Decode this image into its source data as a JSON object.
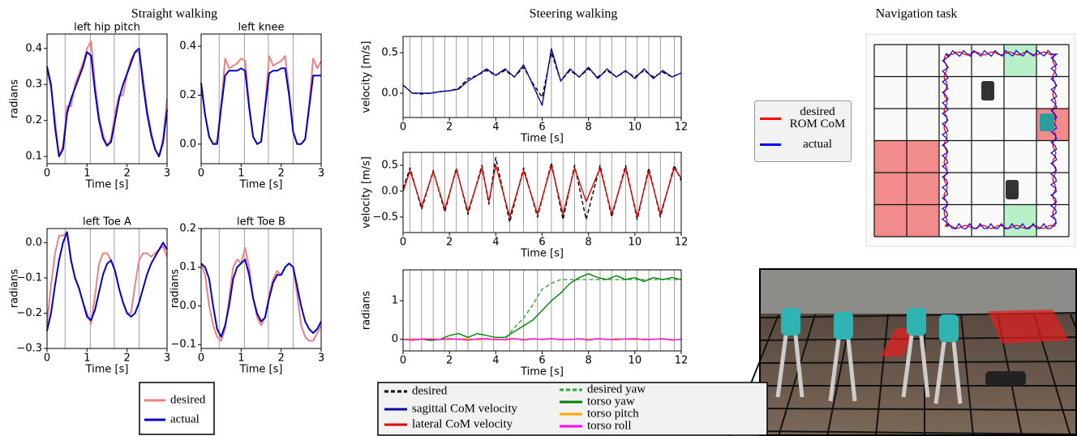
{
  "sections": [
    "Straight walking",
    "Steering walking"
  ],
  "navigation": {
    "title": "Navigation task",
    "legend": [
      {
        "name": "desired ROM CoM",
        "color": "#ff0000"
      },
      {
        "name": "actual",
        "color": "#0000ff"
      }
    ]
  },
  "chart_data": [
    {
      "type": "line",
      "title": "left hip pitch",
      "xlabel": "Time [s]",
      "ylabel": "radians",
      "x": [
        0,
        0.1,
        0.2,
        0.3,
        0.4,
        0.5,
        0.6,
        0.7,
        0.8,
        0.9,
        1,
        1.1,
        1.2,
        1.3,
        1.4,
        1.5,
        1.6,
        1.7,
        1.8,
        1.9,
        2,
        2.1,
        2.2,
        2.3,
        2.4,
        2.5,
        2.6,
        2.7,
        2.8,
        2.9,
        3
      ],
      "xlim": [
        0,
        3
      ],
      "xticks": [
        0,
        1,
        2,
        3
      ],
      "ylim": [
        0.08,
        0.44
      ],
      "yticks": [
        0.1,
        0.2,
        0.3,
        0.4
      ],
      "vlines": [
        0.45,
        1.08,
        1.68,
        2.3
      ],
      "series": [
        {
          "name": "desired",
          "color": "#f08080",
          "values": [
            0.34,
            0.29,
            0.2,
            0.1,
            0.13,
            0.24,
            0.24,
            0.3,
            0.33,
            0.36,
            0.4,
            0.42,
            0.3,
            0.21,
            0.16,
            0.13,
            0.15,
            0.22,
            0.27,
            0.27,
            0.33,
            0.37,
            0.39,
            0.39,
            0.32,
            0.23,
            0.17,
            0.12,
            0.1,
            0.15,
            0.26
          ]
        },
        {
          "name": "actual",
          "color": "#0000cc",
          "values": [
            0.35,
            0.3,
            0.18,
            0.1,
            0.12,
            0.22,
            0.26,
            0.29,
            0.32,
            0.35,
            0.39,
            0.38,
            0.28,
            0.2,
            0.15,
            0.13,
            0.14,
            0.2,
            0.26,
            0.3,
            0.33,
            0.36,
            0.39,
            0.4,
            0.3,
            0.22,
            0.16,
            0.12,
            0.1,
            0.14,
            0.23
          ]
        }
      ]
    },
    {
      "type": "line",
      "title": "left knee",
      "xlabel": "Time [s]",
      "x": [
        0,
        0.1,
        0.2,
        0.3,
        0.4,
        0.5,
        0.6,
        0.7,
        0.8,
        0.9,
        1,
        1.1,
        1.2,
        1.3,
        1.4,
        1.5,
        1.6,
        1.7,
        1.8,
        1.9,
        2,
        2.1,
        2.2,
        2.3,
        2.4,
        2.5,
        2.6,
        2.7,
        2.8,
        2.9,
        3
      ],
      "xlim": [
        0,
        3
      ],
      "xticks": [
        0,
        1,
        2,
        3
      ],
      "ylim": [
        -0.08,
        0.45
      ],
      "yticks": [
        {
          "value": 0,
          "label": "0.0"
        },
        0.2,
        0.4
      ],
      "vlines": [
        0.45,
        1.08,
        1.68,
        2.3
      ],
      "series": [
        {
          "name": "desired",
          "color": "#f08080",
          "values": [
            0.24,
            0.12,
            0.03,
            0.0,
            0.01,
            0.16,
            0.35,
            0.31,
            0.32,
            0.33,
            0.35,
            0.34,
            0.16,
            0.03,
            0.0,
            0.01,
            0.16,
            0.36,
            0.32,
            0.33,
            0.34,
            0.36,
            0.22,
            0.05,
            0.0,
            0.0,
            0.02,
            0.16,
            0.35,
            0.31,
            0.34
          ]
        },
        {
          "name": "actual",
          "color": "#0000cc",
          "values": [
            0.25,
            0.12,
            0.03,
            0.0,
            0.0,
            0.15,
            0.28,
            0.3,
            0.3,
            0.3,
            0.31,
            0.3,
            0.15,
            0.03,
            0.0,
            0.01,
            0.15,
            0.29,
            0.3,
            0.3,
            0.31,
            0.31,
            0.2,
            0.05,
            0.0,
            0.0,
            0.02,
            0.15,
            0.28,
            0.28,
            0.28
          ]
        }
      ]
    },
    {
      "type": "line",
      "title": "left Toe A",
      "xlabel": "Time [s]",
      "ylabel": "radians",
      "x": [
        0,
        0.1,
        0.2,
        0.3,
        0.4,
        0.5,
        0.6,
        0.7,
        0.8,
        0.9,
        1,
        1.1,
        1.2,
        1.3,
        1.4,
        1.5,
        1.6,
        1.7,
        1.8,
        1.9,
        2,
        2.1,
        2.2,
        2.3,
        2.4,
        2.5,
        2.6,
        2.7,
        2.8,
        2.9,
        3
      ],
      "xlim": [
        0,
        3
      ],
      "xticks": [
        0,
        1,
        2,
        3
      ],
      "ylim": [
        -0.3,
        0.04
      ],
      "yticks": [
        {
          "value": -0.3,
          "label": "−0.3"
        },
        {
          "value": -0.2,
          "label": "−0.2"
        },
        {
          "value": -0.1,
          "label": "−0.1"
        },
        {
          "value": 0,
          "label": "0.0"
        }
      ],
      "vlines": [
        0.45,
        1.08,
        1.68,
        2.3
      ],
      "series": [
        {
          "name": "desired",
          "color": "#f08080",
          "values": [
            -0.23,
            -0.12,
            -0.03,
            0.02,
            0.02,
            0.03,
            -0.05,
            -0.1,
            -0.13,
            -0.17,
            -0.2,
            -0.23,
            -0.15,
            -0.06,
            -0.03,
            -0.03,
            -0.05,
            -0.08,
            -0.13,
            -0.17,
            -0.2,
            -0.2,
            -0.12,
            -0.05,
            -0.03,
            -0.03,
            -0.04,
            -0.03,
            -0.02,
            -0.01,
            -0.04
          ]
        },
        {
          "name": "actual",
          "color": "#0000cc",
          "values": [
            -0.25,
            -0.2,
            -0.12,
            -0.05,
            0.0,
            0.03,
            -0.05,
            -0.1,
            -0.13,
            -0.17,
            -0.21,
            -0.22,
            -0.19,
            -0.14,
            -0.09,
            -0.06,
            -0.05,
            -0.08,
            -0.13,
            -0.17,
            -0.2,
            -0.21,
            -0.2,
            -0.17,
            -0.13,
            -0.09,
            -0.06,
            -0.04,
            -0.02,
            0.0,
            -0.02
          ]
        }
      ]
    },
    {
      "type": "line",
      "title": "left Toe B",
      "xlabel": "Time [s]",
      "ylabel": "radians",
      "x": [
        0,
        0.1,
        0.2,
        0.3,
        0.4,
        0.5,
        0.6,
        0.7,
        0.8,
        0.9,
        1,
        1.1,
        1.2,
        1.3,
        1.4,
        1.5,
        1.6,
        1.7,
        1.8,
        1.9,
        2,
        2.1,
        2.2,
        2.3,
        2.4,
        2.5,
        2.6,
        2.7,
        2.8,
        2.9,
        3
      ],
      "xlim": [
        0,
        3
      ],
      "xticks": [
        0,
        1,
        2,
        3
      ],
      "ylim": [
        -0.11,
        0.2
      ],
      "yticks": [
        {
          "value": -0.1,
          "label": "−0.1"
        },
        {
          "value": 0,
          "label": "0.0"
        },
        0.1,
        0.2
      ],
      "vlines": [
        0.45,
        1.08,
        1.68,
        2.3
      ],
      "series": [
        {
          "name": "desired",
          "color": "#f08080",
          "values": [
            0.11,
            0.08,
            0.0,
            -0.05,
            -0.08,
            -0.09,
            -0.06,
            0.02,
            0.1,
            0.12,
            0.11,
            0.15,
            0.1,
            0.02,
            -0.03,
            -0.05,
            -0.03,
            0.03,
            0.07,
            0.09,
            0.08,
            0.1,
            0.11,
            0.1,
            0.03,
            -0.05,
            -0.08,
            -0.09,
            -0.09,
            -0.07,
            -0.05
          ]
        },
        {
          "name": "actual",
          "color": "#0000cc",
          "values": [
            0.11,
            0.1,
            0.07,
            0.0,
            -0.06,
            -0.08,
            -0.05,
            0.0,
            0.07,
            0.1,
            0.11,
            0.12,
            0.08,
            0.02,
            -0.02,
            -0.04,
            -0.03,
            0.02,
            0.06,
            0.08,
            0.08,
            0.1,
            0.11,
            0.1,
            0.05,
            0.0,
            -0.04,
            -0.06,
            -0.07,
            -0.06,
            -0.04
          ]
        }
      ]
    },
    {
      "type": "line",
      "xlabel": "Time [s]",
      "ylabel": "velocity [m/s]",
      "x": [
        0,
        0.4,
        0.8,
        1.2,
        1.6,
        2,
        2.4,
        2.8,
        3.2,
        3.6,
        4,
        4.4,
        4.8,
        5.2,
        5.6,
        6,
        6.4,
        6.8,
        7.2,
        7.6,
        8,
        8.4,
        8.8,
        9.2,
        9.6,
        10,
        10.4,
        10.8,
        11.2,
        11.6,
        12
      ],
      "xlim": [
        0,
        12
      ],
      "xticks": [
        0,
        2,
        4,
        6,
        8,
        10,
        12
      ],
      "ylim": [
        -0.3,
        0.7
      ],
      "yticks": [
        {
          "value": 0,
          "label": "0.0"
        },
        0.5
      ],
      "vlines": [
        0.3,
        0.8,
        1.3,
        1.8,
        2.3,
        2.8,
        3.4,
        3.9,
        4.6,
        5.2,
        5.8,
        6.4,
        6.9,
        7.4,
        7.9,
        8.5,
        9.0,
        9.6,
        10.1,
        10.6,
        11.1,
        11.7
      ],
      "series": [
        {
          "name": "desired",
          "color": "#000000",
          "dashed": true,
          "values": [
            0.1,
            0.0,
            -0.01,
            0.0,
            0.02,
            0.03,
            0.06,
            0.18,
            0.22,
            0.28,
            0.22,
            0.28,
            0.2,
            0.32,
            0.12,
            -0.05,
            0.5,
            0.15,
            0.28,
            0.2,
            0.3,
            0.2,
            0.28,
            0.2,
            0.27,
            0.2,
            0.28,
            0.2,
            0.26,
            0.2,
            0.25
          ]
        },
        {
          "name": "sagittal CoM velocity",
          "color": "#0a0a9a",
          "values": [
            0.1,
            0.0,
            0.0,
            0.0,
            0.02,
            0.03,
            0.05,
            0.15,
            0.22,
            0.3,
            0.22,
            0.3,
            0.2,
            0.35,
            0.1,
            -0.15,
            0.55,
            0.15,
            0.3,
            0.2,
            0.32,
            0.18,
            0.3,
            0.2,
            0.28,
            0.18,
            0.3,
            0.18,
            0.28,
            0.2,
            0.25
          ]
        }
      ]
    },
    {
      "type": "line",
      "xlabel": "Time [s]",
      "ylabel": "velocity [m/s]",
      "x": [
        0,
        0.3,
        0.8,
        1.3,
        1.8,
        2.3,
        2.8,
        3.4,
        3.7,
        4.0,
        4.6,
        5.2,
        5.8,
        6.4,
        6.9,
        7.4,
        7.9,
        8.5,
        9.0,
        9.6,
        10.1,
        10.6,
        11.1,
        11.7,
        12
      ],
      "xlim": [
        0,
        12
      ],
      "xticks": [
        0,
        2,
        4,
        6,
        8,
        10,
        12
      ],
      "ylim": [
        -0.8,
        0.75
      ],
      "yticks": [
        {
          "value": -0.5,
          "label": "−0.5"
        },
        {
          "value": 0,
          "label": "0.0"
        },
        0.5
      ],
      "vlines": [
        0.3,
        0.8,
        1.3,
        1.8,
        2.3,
        2.8,
        3.4,
        3.9,
        4.6,
        5.2,
        5.8,
        6.4,
        6.9,
        7.4,
        7.9,
        8.5,
        9.0,
        9.6,
        10.1,
        10.6,
        11.1,
        11.7
      ],
      "series": [
        {
          "name": "desired",
          "color": "#000000",
          "dashed": true,
          "values": [
            0.05,
            0.45,
            -0.35,
            0.4,
            -0.4,
            0.45,
            -0.45,
            0.5,
            -0.25,
            0.65,
            -0.6,
            0.45,
            -0.5,
            0.55,
            -0.55,
            0.5,
            -0.55,
            0.5,
            -0.5,
            0.5,
            -0.55,
            0.45,
            -0.5,
            0.5,
            0.2
          ]
        },
        {
          "name": "lateral CoM velocity",
          "color": "#e00000",
          "values": [
            0.0,
            0.4,
            -0.3,
            0.38,
            -0.35,
            0.42,
            -0.4,
            0.45,
            -0.2,
            0.5,
            -0.5,
            0.4,
            -0.45,
            0.5,
            -0.45,
            0.45,
            -0.2,
            0.45,
            -0.45,
            0.45,
            -0.5,
            0.4,
            -0.45,
            0.45,
            0.25
          ]
        }
      ]
    },
    {
      "type": "line",
      "xlabel": "Time [s]",
      "ylabel": "radians",
      "x": [
        0,
        0.4,
        0.8,
        1.2,
        1.6,
        2,
        2.4,
        2.8,
        3.2,
        3.6,
        4,
        4.4,
        4.8,
        5.2,
        5.6,
        6,
        6.4,
        6.8,
        7.2,
        7.6,
        8,
        8.4,
        8.8,
        9.2,
        9.6,
        10,
        10.4,
        10.8,
        11.2,
        11.6,
        12
      ],
      "xlim": [
        0,
        12
      ],
      "xticks": [
        0,
        2,
        4,
        6,
        8,
        10,
        12
      ],
      "ylim": [
        -0.3,
        1.8
      ],
      "yticks": [
        0,
        1
      ],
      "vlines": [
        0.3,
        0.8,
        1.3,
        1.8,
        2.3,
        2.8,
        3.4,
        3.9,
        4.6,
        5.2,
        5.8,
        6.4,
        6.9,
        7.4,
        7.9,
        8.5,
        9.0,
        9.6,
        10.1,
        10.6,
        11.1,
        11.7
      ],
      "series": [
        {
          "name": "desired yaw",
          "color": "#3ca03c",
          "dashed": true,
          "values": [
            0,
            0,
            0,
            0,
            0,
            0,
            0,
            0,
            0,
            0,
            0,
            0,
            0.3,
            0.55,
            0.9,
            1.3,
            1.45,
            1.55,
            1.55,
            1.55,
            1.55,
            1.55,
            1.55,
            1.55,
            1.55,
            1.55,
            1.55,
            1.55,
            1.55,
            1.55,
            1.55
          ]
        },
        {
          "name": "torso yaw",
          "color": "#008000",
          "values": [
            0,
            -0.02,
            0,
            -0.03,
            0,
            0.1,
            0.15,
            0.05,
            0.15,
            0.1,
            0.05,
            0.05,
            0.2,
            0.35,
            0.5,
            0.75,
            1.0,
            1.2,
            1.45,
            1.6,
            1.7,
            1.6,
            1.55,
            1.65,
            1.55,
            1.6,
            1.5,
            1.6,
            1.55,
            1.6,
            1.55
          ]
        },
        {
          "name": "torso pitch",
          "color": "#ffa500",
          "values": [
            0,
            0.01,
            -0.01,
            0.02,
            0,
            -0.01,
            0.01,
            0.02,
            -0.01,
            0,
            0.01,
            -0.02,
            0.01,
            0,
            0.02,
            -0.01,
            0.01,
            0,
            -0.01,
            0.02,
            0,
            0.01,
            -0.01,
            0.02,
            0,
            -0.01,
            0.01,
            0,
            0.02,
            -0.01,
            0
          ]
        },
        {
          "name": "torso roll",
          "color": "#ff00ff",
          "values": [
            0,
            -0.02,
            0.01,
            0,
            -0.01,
            0.02,
            0,
            -0.02,
            0.01,
            0.02,
            -0.01,
            0,
            0.02,
            -0.02,
            0.01,
            0,
            0.02,
            -0.01,
            0,
            0.01,
            -0.02,
            0.02,
            0,
            -0.01,
            0.01,
            0.02,
            -0.01,
            0,
            0.01,
            -0.02,
            0
          ]
        }
      ]
    }
  ]
}
